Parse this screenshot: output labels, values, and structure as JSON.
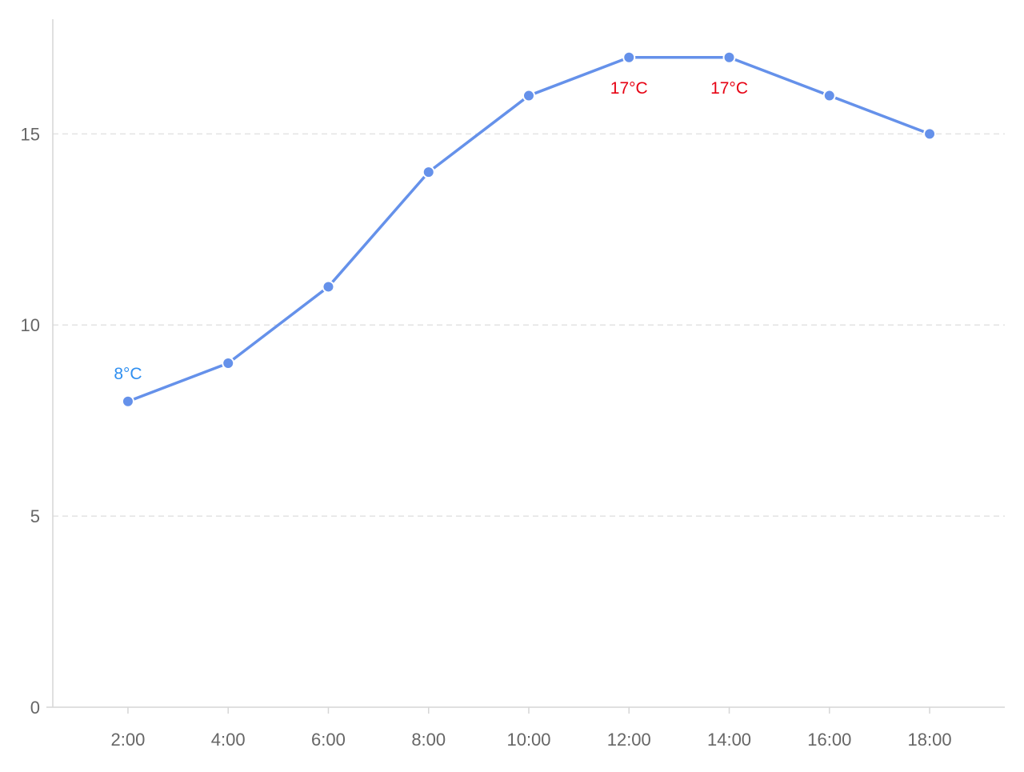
{
  "chart_data": {
    "type": "line",
    "categories": [
      "2:00",
      "4:00",
      "6:00",
      "8:00",
      "10:00",
      "12:00",
      "14:00",
      "16:00",
      "18:00"
    ],
    "series": [
      {
        "values": [
          8,
          9,
          11,
          14,
          16,
          17,
          17,
          16,
          15
        ],
        "color": "#6591ea"
      }
    ],
    "ylim": [
      0,
      18
    ],
    "y_ticks": [
      0,
      5,
      10,
      15
    ],
    "grid": "horizontal dashed",
    "annotations": [
      {
        "category": "2:00",
        "value": 8,
        "text": "8°C",
        "color": "#2f8ff0",
        "placement": "above"
      },
      {
        "category": "12:00",
        "value": 17,
        "text": "17°C",
        "color": "#e60012",
        "placement": "below"
      },
      {
        "category": "14:00",
        "value": 17,
        "text": "17°C",
        "color": "#e60012",
        "placement": "below"
      }
    ]
  }
}
